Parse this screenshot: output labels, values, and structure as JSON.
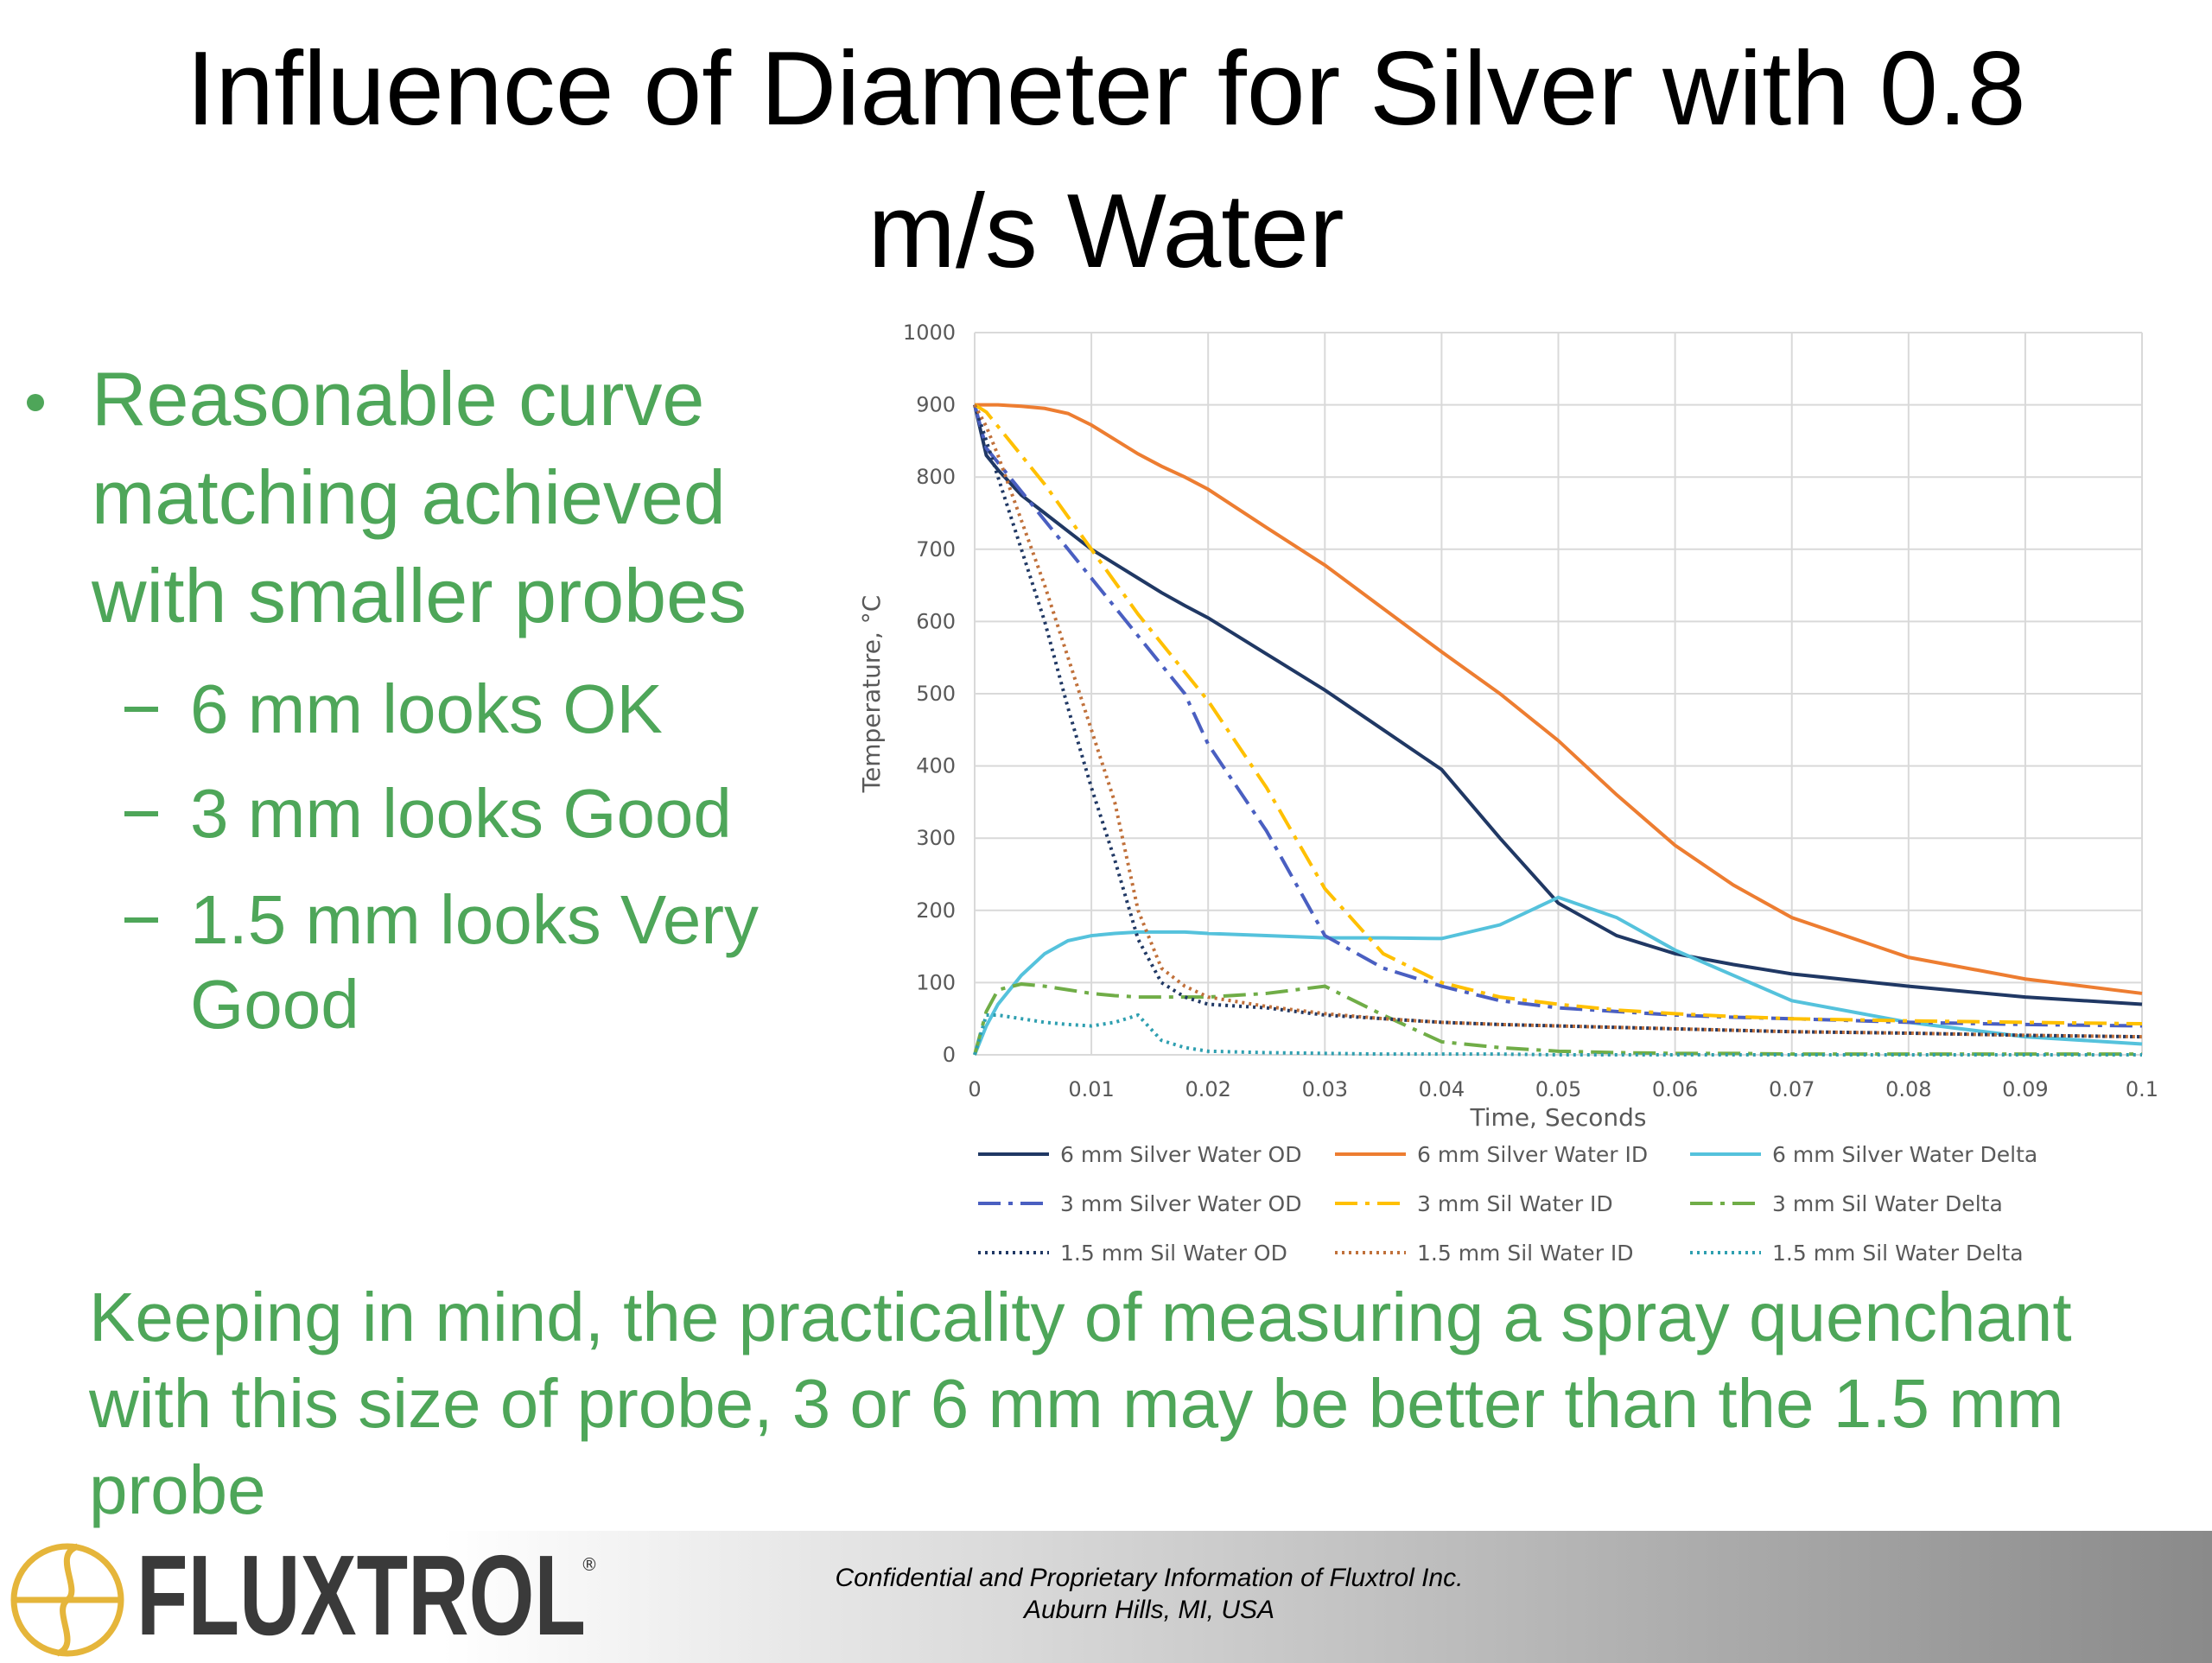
{
  "title": "Influence of Diameter for Silver with 0.8 m/s Water",
  "bullets": {
    "main": "Reasonable curve matching achieved with smaller probes",
    "sub": [
      "6 mm looks OK",
      "3 mm looks Good",
      "1.5 mm looks Very Good"
    ]
  },
  "note": "Keeping in mind, the practicality of measuring a spray quenchant with this size of probe, 3 or 6 mm may be better than the 1.5 mm probe",
  "footer": {
    "logo": "FLUXTROL",
    "registered": "®",
    "confidential": "Confidential and Proprietary Information of Fluxtrol Inc.",
    "location": "Auburn Hills, MI, USA"
  },
  "chart_data": {
    "type": "line",
    "x_label": "Time, Seconds",
    "y_label": "Temperature, °C",
    "xlim": [
      0,
      0.1
    ],
    "xticks": [
      0,
      0.01,
      0.02,
      0.03,
      0.04,
      0.05,
      0.06,
      0.07,
      0.08,
      0.09,
      0.1
    ],
    "ylim": [
      0,
      1000
    ],
    "yticks": [
      0,
      100,
      200,
      300,
      400,
      500,
      600,
      700,
      800,
      900,
      1000
    ],
    "grid": true,
    "legend": "bottom",
    "x": [
      0,
      0.001,
      0.002,
      0.004,
      0.006,
      0.008,
      0.01,
      0.012,
      0.014,
      0.016,
      0.018,
      0.02,
      0.025,
      0.03,
      0.035,
      0.04,
      0.045,
      0.05,
      0.055,
      0.06,
      0.065,
      0.07,
      0.08,
      0.09,
      0.1
    ],
    "series": [
      {
        "name": "6 mm Silver Water OD",
        "color": "#203864",
        "style": "solid",
        "values": [
          900,
          830,
          810,
          775,
          750,
          725,
          700,
          680,
          660,
          640,
          622,
          605,
          555,
          505,
          450,
          395,
          300,
          210,
          165,
          140,
          125,
          112,
          95,
          80,
          70
        ]
      },
      {
        "name": "6 mm Silver Water ID",
        "color": "#ed7d31",
        "style": "solid",
        "values": [
          900,
          900,
          900,
          898,
          895,
          888,
          872,
          852,
          832,
          815,
          800,
          783,
          730,
          678,
          618,
          558,
          500,
          435,
          360,
          290,
          235,
          190,
          135,
          105,
          85
        ]
      },
      {
        "name": "6 mm Silver Water Delta",
        "color": "#55c2dc",
        "style": "solid",
        "values": [
          0,
          40,
          70,
          110,
          140,
          158,
          165,
          168,
          170,
          170,
          170,
          168,
          165,
          162,
          162,
          161,
          180,
          218,
          190,
          145,
          110,
          75,
          45,
          25,
          15
        ]
      },
      {
        "name": "3 mm Silver Water OD",
        "color": "#4a5fc1",
        "style": "dashdot",
        "values": [
          900,
          840,
          820,
          780,
          740,
          700,
          660,
          620,
          580,
          540,
          500,
          430,
          310,
          165,
          120,
          95,
          75,
          65,
          60,
          55,
          52,
          50,
          45,
          42,
          40
        ]
      },
      {
        "name": "3 mm Sil Water ID",
        "color": "#ffc000",
        "style": "dashdot",
        "values": [
          900,
          890,
          870,
          830,
          790,
          745,
          700,
          655,
          610,
          570,
          530,
          490,
          370,
          230,
          140,
          100,
          80,
          70,
          62,
          57,
          53,
          50,
          47,
          45,
          43
        ]
      },
      {
        "name": "3 mm Sil Water Delta",
        "color": "#70ad47",
        "style": "dashdot",
        "values": [
          0,
          60,
          90,
          98,
          95,
          90,
          85,
          82,
          80,
          80,
          80,
          80,
          85,
          95,
          55,
          18,
          10,
          5,
          3,
          2,
          2,
          1,
          1,
          1,
          1
        ]
      },
      {
        "name": "1.5 mm Sil Water OD",
        "color": "#203864",
        "style": "dot",
        "values": [
          900,
          850,
          800,
          700,
          600,
          480,
          370,
          270,
          160,
          100,
          80,
          70,
          65,
          55,
          50,
          45,
          42,
          40,
          38,
          36,
          34,
          32,
          30,
          27,
          25
        ]
      },
      {
        "name": "1.5 mm Sil Water ID",
        "color": "#c0703a",
        "style": "dot",
        "values": [
          900,
          870,
          830,
          740,
          650,
          550,
          450,
          350,
          200,
          120,
          95,
          80,
          67,
          57,
          50,
          45,
          42,
          40,
          38,
          36,
          34,
          32,
          30,
          27,
          25
        ]
      },
      {
        "name": "1.5 mm Sil Water Delta",
        "color": "#2e9fb0",
        "style": "dot",
        "values": [
          0,
          55,
          55,
          50,
          45,
          42,
          40,
          45,
          55,
          20,
          10,
          5,
          3,
          2,
          1,
          1,
          1,
          0,
          0,
          0,
          0,
          0,
          0,
          0,
          0
        ]
      }
    ]
  }
}
